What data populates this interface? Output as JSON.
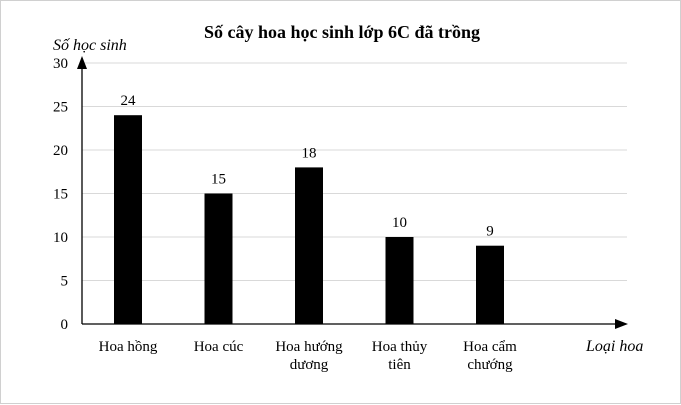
{
  "chart_data": {
    "type": "bar",
    "title": "Số cây hoa học sinh lớp 6C đã trồng",
    "ylabel": "Số học sinh",
    "xlabel": "Loại hoa",
    "categories": [
      [
        "Hoa hồng"
      ],
      [
        "Hoa cúc"
      ],
      [
        "Hoa hướng",
        "dương"
      ],
      [
        "Hoa thủy",
        "tiên"
      ],
      [
        "Hoa cẩm",
        "chướng"
      ]
    ],
    "values": [
      24,
      15,
      18,
      10,
      9
    ],
    "data_labels": [
      "24",
      "15",
      "18",
      "10",
      "9"
    ],
    "ylim": [
      0,
      30
    ],
    "yticks": [
      "0",
      "5",
      "10",
      "15",
      "20",
      "25",
      "30"
    ],
    "grid": true,
    "bar_color": "#000000",
    "grid_color": "#d9d9d9"
  }
}
